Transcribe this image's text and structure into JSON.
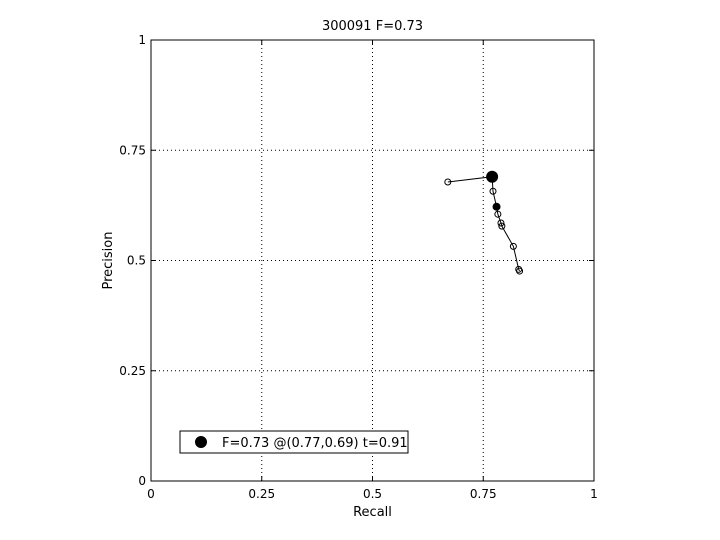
{
  "chart_data": {
    "type": "scatter",
    "title": "300091 F=0.73",
    "xlabel": "Recall",
    "ylabel": "Precision",
    "xlim": [
      0,
      1
    ],
    "ylim": [
      0,
      1
    ],
    "xticks": [
      0,
      0.25,
      0.5,
      0.75,
      1
    ],
    "xtick_labels": [
      "0",
      "0.25",
      "0.5",
      "0.75",
      "1"
    ],
    "yticks": [
      0,
      0.25,
      0.5,
      0.75,
      1
    ],
    "ytick_labels": [
      "0",
      "0.25",
      "0.5",
      "0.75",
      "1"
    ],
    "grid": true,
    "legend_position": "bottom-left",
    "series": [
      {
        "style": "line with open circle markers",
        "color": "#000000",
        "x": [
          0.67,
          0.77,
          0.772,
          0.78,
          0.783,
          0.79,
          0.792,
          0.818,
          0.83,
          0.832
        ],
        "y": [
          0.678,
          0.69,
          0.657,
          0.622,
          0.605,
          0.585,
          0.578,
          0.532,
          0.48,
          0.476
        ]
      },
      {
        "name": "F=0.73 @(0.77,0.69) t=0.91",
        "style": "large filled circle marker",
        "color": "#000000",
        "x": [
          0.77
        ],
        "y": [
          0.69
        ]
      },
      {
        "style": "small filled circle marker",
        "color": "#000000",
        "x": [
          0.78
        ],
        "y": [
          0.622
        ]
      }
    ]
  }
}
